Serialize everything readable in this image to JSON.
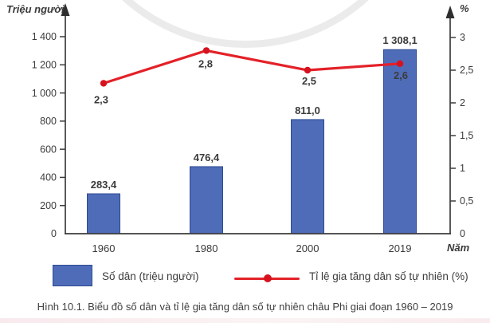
{
  "figure": {
    "caption": "Hình 10.1. Biểu đồ số dân và tỉ lệ gia tăng dân số tự nhiên châu Phi giai đoạn 1960 – 2019"
  },
  "chart_data": {
    "type": "combo-bar-line",
    "categories": [
      "1960",
      "1980",
      "2000",
      "2019"
    ],
    "series": [
      {
        "name": "Số dân (triệu người)",
        "type": "bar",
        "axis": "left",
        "values": [
          283.4,
          476.4,
          811.0,
          1308.1
        ],
        "value_labels": [
          "283,4",
          "476,4",
          "811,0",
          "1 308,1"
        ],
        "color": "#4f6cb8",
        "border_color": "#2d4a94"
      },
      {
        "name": "Tỉ lệ gia tăng dân số tự nhiên (%)",
        "type": "line",
        "axis": "right",
        "values": [
          2.3,
          2.8,
          2.5,
          2.6
        ],
        "value_labels": [
          "2,3",
          "2,8",
          "2,5",
          "2,6"
        ],
        "color": "#e32128",
        "point_color": "#d6121f"
      }
    ],
    "left_axis": {
      "title": "Triệu người",
      "max": 1400,
      "tick_values": [
        200,
        400,
        600,
        800,
        1000,
        1200,
        1400
      ],
      "tick_labels": [
        "200",
        "400",
        "600",
        "800",
        "1 000",
        "1 200",
        "1 400"
      ],
      "zero_label": "0"
    },
    "right_axis": {
      "title": "%",
      "max": 3,
      "tick_values": [
        0.5,
        1,
        1.5,
        2,
        2.5,
        3
      ],
      "tick_labels": [
        "0,5",
        "1",
        "1,5",
        "2",
        "2,5",
        "3"
      ],
      "zero_label": "0"
    },
    "x_axis": {
      "title": "Năm"
    },
    "legend_position": "bottom",
    "grid": false
  },
  "legend": {
    "bar_label": "Số dân (triệu người)",
    "line_label": "Tỉ lệ gia tăng dân số tự nhiên (%)"
  }
}
